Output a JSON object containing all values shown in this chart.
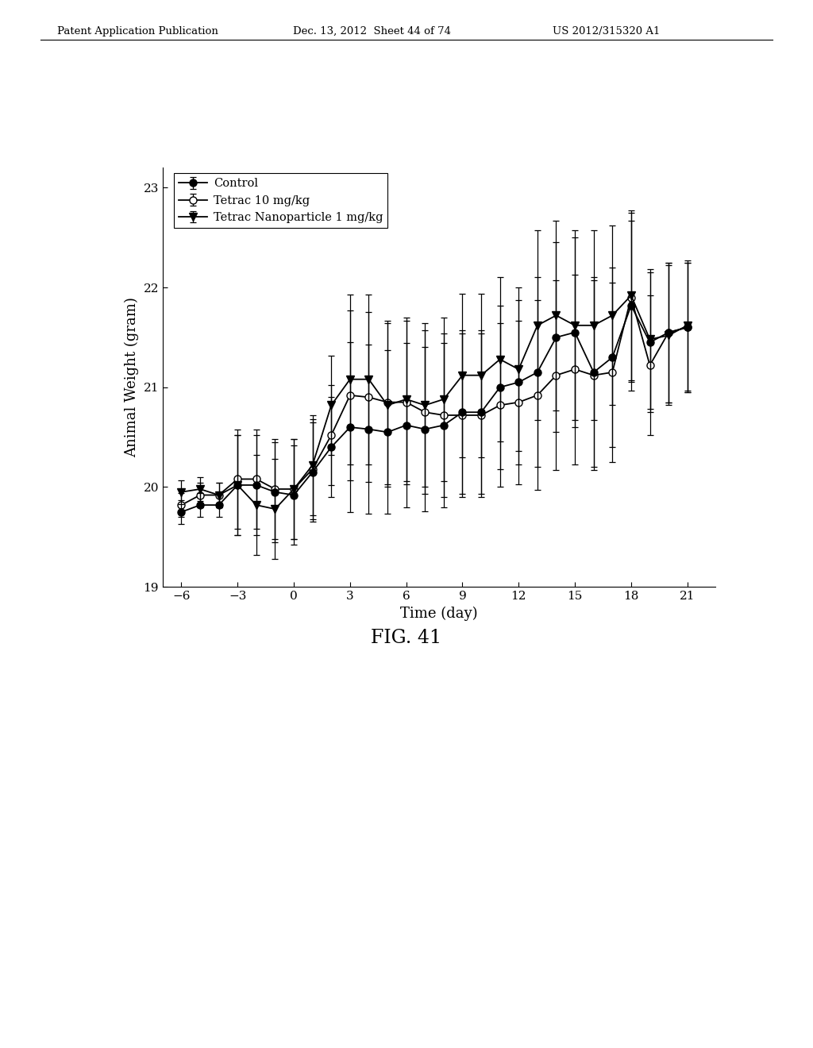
{
  "time_points": [
    -6,
    -5,
    -4,
    -3,
    -2,
    -1,
    0,
    1,
    2,
    3,
    4,
    5,
    6,
    7,
    8,
    9,
    10,
    11,
    12,
    13,
    14,
    15,
    16,
    17,
    18,
    19,
    20,
    21
  ],
  "control": {
    "y": [
      19.75,
      19.82,
      19.82,
      20.02,
      20.02,
      19.95,
      19.92,
      20.15,
      20.4,
      20.6,
      20.58,
      20.55,
      20.62,
      20.58,
      20.62,
      20.75,
      20.75,
      21.0,
      21.05,
      21.15,
      21.5,
      21.55,
      21.15,
      21.3,
      21.82,
      21.45,
      21.55,
      21.6
    ],
    "yerr": [
      0.12,
      0.12,
      0.12,
      0.5,
      0.5,
      0.5,
      0.5,
      0.5,
      0.5,
      0.85,
      0.85,
      0.82,
      0.82,
      0.82,
      0.82,
      0.82,
      0.82,
      0.82,
      0.82,
      0.95,
      0.95,
      0.95,
      0.95,
      0.9,
      0.85,
      0.7,
      0.7,
      0.65
    ]
  },
  "tetrac10": {
    "y": [
      19.82,
      19.92,
      19.92,
      20.08,
      20.08,
      19.98,
      19.98,
      20.18,
      20.52,
      20.92,
      20.9,
      20.85,
      20.85,
      20.75,
      20.72,
      20.72,
      20.72,
      20.82,
      20.85,
      20.92,
      21.12,
      21.18,
      21.12,
      21.15,
      21.9,
      21.22,
      21.55,
      21.6
    ],
    "yerr": [
      0.12,
      0.12,
      0.12,
      0.5,
      0.5,
      0.5,
      0.5,
      0.5,
      0.5,
      0.85,
      0.85,
      0.82,
      0.82,
      0.82,
      0.82,
      0.82,
      0.82,
      0.82,
      0.82,
      0.95,
      0.95,
      0.95,
      0.95,
      0.9,
      0.85,
      0.7,
      0.7,
      0.65
    ]
  },
  "nano1": {
    "y": [
      19.95,
      19.98,
      19.92,
      20.02,
      19.82,
      19.78,
      19.98,
      20.22,
      20.82,
      21.08,
      21.08,
      20.82,
      20.88,
      20.82,
      20.88,
      21.12,
      21.12,
      21.28,
      21.18,
      21.62,
      21.72,
      21.62,
      21.62,
      21.72,
      21.92,
      21.48,
      21.52,
      21.62
    ],
    "yerr": [
      0.12,
      0.12,
      0.12,
      0.5,
      0.5,
      0.5,
      0.5,
      0.5,
      0.5,
      0.85,
      0.85,
      0.82,
      0.82,
      0.82,
      0.82,
      0.82,
      0.82,
      0.82,
      0.82,
      0.95,
      0.95,
      0.95,
      0.95,
      0.9,
      0.85,
      0.7,
      0.7,
      0.65
    ]
  },
  "xlabel": "Time (day)",
  "ylabel": "Animal Weight (gram)",
  "xlim": [
    -7,
    22.5
  ],
  "ylim": [
    19,
    23.2
  ],
  "xticks": [
    -6,
    -3,
    0,
    3,
    6,
    9,
    12,
    15,
    18,
    21
  ],
  "yticks": [
    19,
    20,
    21,
    22,
    23
  ],
  "legend_labels": [
    "Control",
    "Tetrac 10 mg/kg",
    "Tetrac Nanoparticle 1 mg/kg"
  ],
  "fig_label": "FIG. 41",
  "header_left": "Patent Application Publication",
  "header_mid": "Dec. 13, 2012  Sheet 44 of 74",
  "header_right": "US 2012/315320 A1"
}
